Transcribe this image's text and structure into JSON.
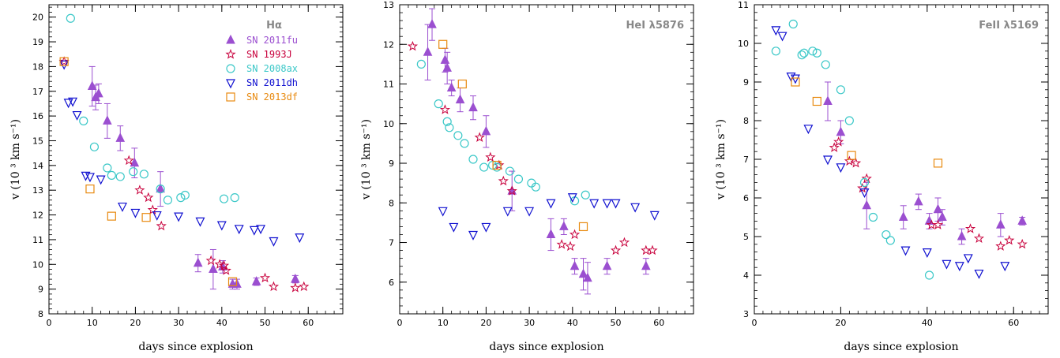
{
  "colors": {
    "SN 2011fu": "#9b4fd0",
    "SN 1993J": "#c8003c",
    "SN 2008ax": "#3cc8c8",
    "SN 2011dh": "#1010d0",
    "SN 2013df": "#e88a10"
  },
  "chart_data": [
    {
      "type": "scatter",
      "title": "Hα",
      "xlabel": "days since explosion",
      "ylabel": "v (10 ³ km s⁻¹)",
      "xlim": [
        0,
        68
      ],
      "ylim": [
        8,
        20.5
      ],
      "xticks": [
        0,
        10,
        20,
        30,
        40,
        50,
        60
      ],
      "yticks": [
        8,
        9,
        10,
        11,
        12,
        13,
        14,
        15,
        16,
        17,
        18,
        19,
        20
      ],
      "legend": "top-right",
      "series": [
        {
          "name": "SN 2011fu",
          "marker": "triangle-filled",
          "x": [
            10,
            10.8,
            11.5,
            13.5,
            16.5,
            19.8,
            25.8,
            34.5,
            38,
            40.2,
            42.5,
            43.5,
            48,
            57
          ],
          "y": [
            17.2,
            16.75,
            16.9,
            15.8,
            15.1,
            14.1,
            13.05,
            10.05,
            9.8,
            9.9,
            9.2,
            9.2,
            9.3,
            9.4
          ],
          "err": [
            0.8,
            0.5,
            0.4,
            0.7,
            0.5,
            0.6,
            0.7,
            0.35,
            0.8,
            0.25,
            0.2,
            0.2,
            0.15,
            0.15
          ]
        },
        {
          "name": "SN 1993J",
          "marker": "star-open",
          "x": [
            3.5,
            18.5,
            21,
            23,
            24,
            26,
            37.5,
            39.5,
            40.5,
            41,
            50,
            52,
            57,
            59
          ],
          "y": [
            18.2,
            14.2,
            13.0,
            12.7,
            12.2,
            11.55,
            10.15,
            10.0,
            9.95,
            9.75,
            9.45,
            9.1,
            9.05,
            9.1
          ]
        },
        {
          "name": "SN 2008ax",
          "marker": "circle-open",
          "x": [
            5,
            8,
            10.5,
            13.5,
            14.5,
            16.5,
            19.5,
            22,
            25.8,
            27.5,
            30.5,
            31.5,
            40.5,
            43
          ],
          "y": [
            19.95,
            15.8,
            14.75,
            13.9,
            13.6,
            13.55,
            13.75,
            13.65,
            13.05,
            12.6,
            12.7,
            12.8,
            12.65,
            12.7
          ]
        },
        {
          "name": "SN 2011dh",
          "marker": "triangle-open-down",
          "x": [
            3.5,
            4.5,
            5.5,
            6.5,
            8.5,
            9.5,
            12,
            17,
            20,
            25,
            30,
            35,
            40,
            44,
            47.5,
            49,
            52,
            58
          ],
          "y": [
            18.1,
            16.55,
            16.6,
            16.05,
            13.6,
            13.55,
            13.45,
            12.35,
            12.1,
            12.0,
            11.95,
            11.75,
            11.6,
            11.45,
            11.4,
            11.45,
            10.95,
            11.1
          ]
        },
        {
          "name": "SN 2013df",
          "marker": "square-open",
          "x": [
            3.5,
            9.5,
            14.5,
            22.5,
            42.5
          ],
          "y": [
            18.2,
            13.05,
            11.95,
            11.9,
            9.3
          ]
        }
      ]
    },
    {
      "type": "scatter",
      "title": "HeI λ5876",
      "xlabel": "days since explosion",
      "ylabel": "v (10 ³ km s⁻¹)",
      "xlim": [
        0,
        68
      ],
      "ylim": [
        5.2,
        13
      ],
      "xticks": [
        0,
        10,
        20,
        30,
        40,
        50,
        60
      ],
      "yticks": [
        6,
        7,
        8,
        9,
        10,
        11,
        12,
        13
      ],
      "legend": "none",
      "series": [
        {
          "name": "SN 2011fu",
          "marker": "triangle-filled",
          "x": [
            6.5,
            7.5,
            10.5,
            11,
            12,
            14,
            17,
            20,
            26,
            35,
            38,
            40.5,
            42.5,
            43.5,
            48,
            57
          ],
          "y": [
            11.8,
            12.5,
            11.6,
            11.4,
            10.9,
            10.6,
            10.4,
            9.8,
            8.3,
            7.2,
            7.4,
            6.4,
            6.2,
            6.1,
            6.4,
            6.4
          ],
          "err": [
            0.7,
            0.4,
            0.3,
            0.4,
            0.2,
            0.3,
            0.3,
            0.4,
            0.5,
            0.4,
            0.2,
            0.2,
            0.4,
            0.4,
            0.2,
            0.2
          ]
        },
        {
          "name": "SN 1993J",
          "marker": "star-open",
          "x": [
            3,
            10.5,
            18.5,
            21,
            23,
            24,
            26,
            37.5,
            39.5,
            40.5,
            50,
            52,
            57,
            58.5
          ],
          "y": [
            11.95,
            10.35,
            9.65,
            9.15,
            8.95,
            8.55,
            8.3,
            6.95,
            6.9,
            7.2,
            6.8,
            7.0,
            6.8,
            6.8
          ]
        },
        {
          "name": "SN 2008ax",
          "marker": "circle-open",
          "x": [
            5,
            9,
            11,
            11.5,
            13.5,
            15,
            17,
            19.5,
            21.5,
            22.5,
            25.5,
            27.5,
            30.5,
            31.5,
            40.5,
            43
          ],
          "y": [
            11.5,
            10.5,
            10.05,
            9.9,
            9.7,
            9.5,
            9.1,
            8.9,
            8.95,
            8.9,
            8.8,
            8.6,
            8.5,
            8.4,
            8.05,
            8.2
          ]
        },
        {
          "name": "SN 2011dh",
          "marker": "triangle-open-down",
          "x": [
            10,
            12.5,
            17,
            20,
            25,
            30,
            35,
            40,
            45,
            48,
            50,
            54.5,
            59
          ],
          "y": [
            7.8,
            7.4,
            7.2,
            7.4,
            7.8,
            7.8,
            8.0,
            8.15,
            8.0,
            8.0,
            8.0,
            7.9,
            7.7
          ]
        },
        {
          "name": "SN 2013df",
          "marker": "square-open",
          "x": [
            10,
            14.5,
            22.5,
            42.5
          ],
          "y": [
            12.0,
            11.0,
            8.95,
            7.4
          ]
        }
      ]
    },
    {
      "type": "scatter",
      "title": "FeII λ5169",
      "xlabel": "days since explosion",
      "ylabel": "v (10 ³ km s⁻¹)",
      "xlim": [
        0,
        68
      ],
      "ylim": [
        3,
        11
      ],
      "xticks": [
        0,
        20,
        40,
        60
      ],
      "yticks": [
        3,
        4,
        5,
        6,
        7,
        8,
        9,
        10,
        11
      ],
      "legend": "none",
      "series": [
        {
          "name": "SN 2011fu",
          "marker": "triangle-filled",
          "x": [
            17,
            20,
            26,
            34.5,
            38,
            40.5,
            42.5,
            43.5,
            48,
            57,
            62
          ],
          "y": [
            8.5,
            7.7,
            5.8,
            5.5,
            5.9,
            5.4,
            5.7,
            5.5,
            5.0,
            5.3,
            5.4
          ],
          "err": [
            0.5,
            0.3,
            0.6,
            0.3,
            0.2,
            0.2,
            0.3,
            0.2,
            0.2,
            0.3,
            0.1
          ]
        },
        {
          "name": "SN 1993J",
          "marker": "star-open",
          "x": [
            18.5,
            19.5,
            22,
            23.5,
            25,
            26,
            41,
            42.5,
            50,
            52,
            57,
            59,
            62
          ],
          "y": [
            7.3,
            7.45,
            6.95,
            6.9,
            6.25,
            6.5,
            5.3,
            5.3,
            5.2,
            4.95,
            4.75,
            4.9,
            4.8
          ]
        },
        {
          "name": "SN 2008ax",
          "marker": "circle-open",
          "x": [
            5,
            9,
            11,
            11.5,
            13.5,
            14.5,
            16.5,
            20,
            22,
            25.5,
            27.5,
            30.5,
            31.5,
            40.5
          ],
          "y": [
            9.8,
            10.5,
            9.7,
            9.75,
            9.8,
            9.75,
            9.45,
            8.8,
            8.0,
            6.4,
            5.5,
            5.05,
            4.9,
            4.0
          ]
        },
        {
          "name": "SN 2011dh",
          "marker": "triangle-open-down",
          "x": [
            5,
            6.5,
            8.5,
            9.5,
            12.5,
            17,
            20,
            25.5,
            35,
            40,
            44.5,
            47.5,
            49.5,
            52,
            58
          ],
          "y": [
            10.35,
            10.2,
            9.15,
            9.1,
            7.8,
            7.0,
            6.8,
            6.15,
            4.65,
            4.6,
            4.3,
            4.25,
            4.45,
            4.05,
            4.25
          ]
        },
        {
          "name": "SN 2013df",
          "marker": "square-open",
          "x": [
            9.5,
            14.5,
            22.5,
            42.5
          ],
          "y": [
            9.0,
            8.5,
            7.1,
            6.9
          ]
        }
      ]
    }
  ]
}
